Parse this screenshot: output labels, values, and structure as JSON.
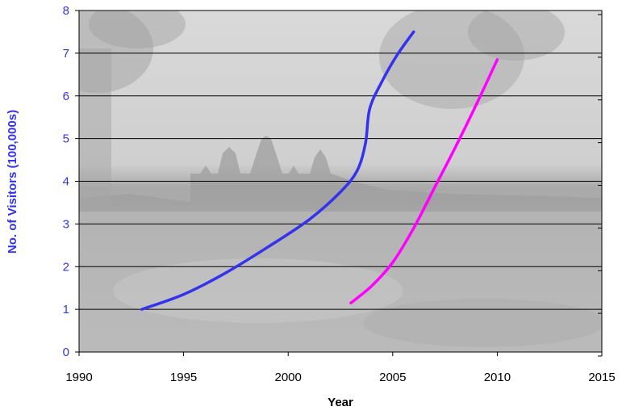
{
  "chart_data": {
    "type": "line",
    "title": "",
    "xlabel": "Year",
    "ylabel": "No. of Visitors (100,000s)",
    "xlim": [
      1990,
      2015
    ],
    "ylim": [
      0,
      8
    ],
    "x_ticks": [
      "1990",
      "1995",
      "2000",
      "2005",
      "2010",
      "2015"
    ],
    "y_ticks": [
      "0",
      "1",
      "2",
      "3",
      "4",
      "5",
      "6",
      "7",
      "8"
    ],
    "grid": "horizontal",
    "background": "photo of temple silhouette at sunrise over water",
    "series": [
      {
        "color": "#3333ee",
        "points": [
          [
            1993,
            1.0
          ],
          [
            1995,
            1.35
          ],
          [
            1997,
            1.85
          ],
          [
            1999,
            2.45
          ],
          [
            2001,
            3.1
          ],
          [
            2002.5,
            3.75
          ],
          [
            2003.3,
            4.25
          ],
          [
            2003.7,
            4.9
          ],
          [
            2003.9,
            5.7
          ],
          [
            2004.5,
            6.35
          ],
          [
            2005.2,
            6.95
          ],
          [
            2006,
            7.5
          ]
        ]
      },
      {
        "color": "#ff00ff",
        "points": [
          [
            2003,
            1.15
          ],
          [
            2004,
            1.55
          ],
          [
            2005,
            2.1
          ],
          [
            2006,
            2.9
          ],
          [
            2007,
            3.85
          ],
          [
            2008,
            4.8
          ],
          [
            2009,
            5.8
          ],
          [
            2010,
            6.85
          ]
        ]
      }
    ]
  }
}
